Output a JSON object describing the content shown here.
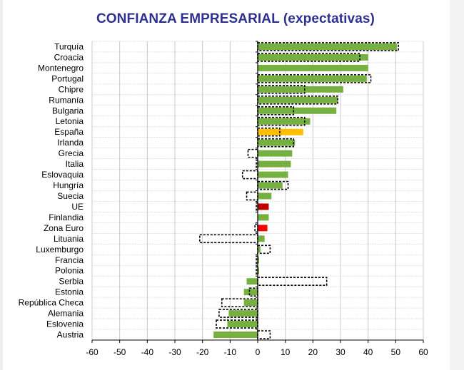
{
  "chart_data": {
    "type": "bar",
    "orientation": "horizontal",
    "title": "CONFIANZA EMPRESARIAL (expectativas)",
    "xlim": [
      -60,
      60
    ],
    "xticks": [
      "-60",
      "-50",
      "-40",
      "-30",
      "-20",
      "-10",
      "0",
      "10",
      "20",
      "30",
      "40",
      "50",
      "60"
    ],
    "grid": true,
    "categories": [
      "Turquía",
      "Croacia",
      "Montenegro",
      "Portugal",
      "Chipre",
      "Rumanía",
      "Bulgaria",
      "Letonia",
      "España",
      "Irlanda",
      "Grecia",
      "Italia",
      "Eslovaquia",
      "Hungría",
      "Suecia",
      "UE",
      "Finlandia",
      "Zona Euro",
      "Lituania",
      "Luxemburgo",
      "Francia",
      "Polonia",
      "Serbia",
      "Estonia",
      "República Checa",
      "Alemania",
      "Eslovenia",
      "Austria"
    ],
    "series": [
      {
        "values": [
          50.5,
          40,
          40,
          39.5,
          31,
          29,
          28.5,
          19,
          16.5,
          13.5,
          12.5,
          12,
          11,
          9,
          5,
          4,
          4,
          3.5,
          2.5,
          1,
          0.5,
          0.5,
          -4,
          -5,
          -5,
          -10.5,
          -11,
          -16
        ]
      },
      {
        "values": [
          51,
          37,
          null,
          41,
          17,
          29,
          13,
          17,
          8,
          13,
          -3.5,
          -0.5,
          -5.5,
          11,
          -4,
          -0.5,
          null,
          -1,
          -21,
          4.5,
          -0.5,
          -0.5,
          25,
          -3,
          -13,
          -14,
          -15,
          4.5
        ]
      }
    ],
    "colors": {
      "bar": "#76b041",
      "spain": "#ffbf00",
      "ue": "#c00000",
      "zona_euro": "#ff0000",
      "outline": "#000000",
      "title": "#2e3192"
    }
  }
}
